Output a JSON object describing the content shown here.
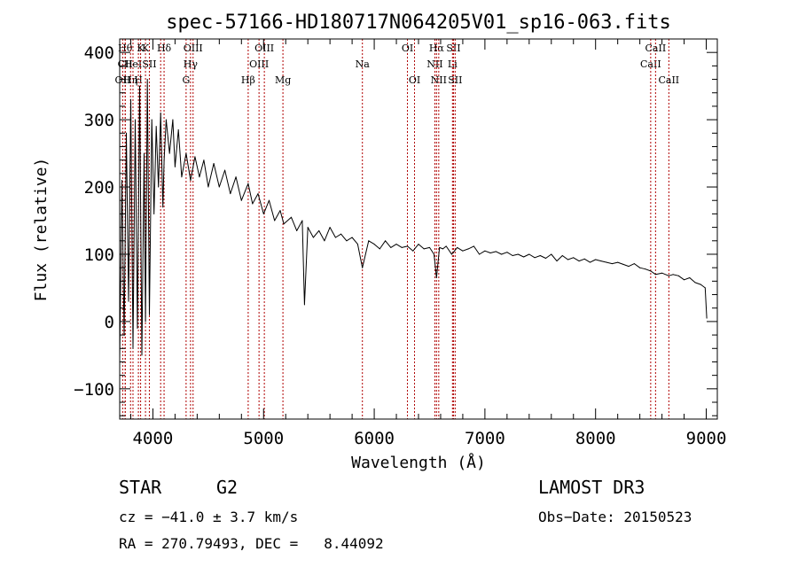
{
  "chart_data": {
    "type": "line",
    "title": "spec-57166-HD180717N064205V01_sp16-063.fits",
    "xlabel": "Wavelength (Å)",
    "ylabel": "Flux (relative)",
    "xlim": [
      3700,
      9100
    ],
    "ylim": [
      -145,
      420
    ],
    "xticks": [
      4000,
      5000,
      6000,
      7000,
      8000,
      9000
    ],
    "xtick_labels": [
      "4000",
      "5000",
      "6000",
      "7000",
      "8000",
      "9000"
    ],
    "yticks": [
      -100,
      0,
      100,
      200,
      300,
      400
    ],
    "ytick_labels": [
      "−100",
      "0",
      "100",
      "200",
      "300",
      "400"
    ],
    "series": [
      {
        "name": "spectrum",
        "x": [
          3700,
          3720,
          3740,
          3760,
          3780,
          3800,
          3820,
          3840,
          3860,
          3880,
          3900,
          3920,
          3933,
          3950,
          3968,
          3990,
          4010,
          4030,
          4050,
          4070,
          4090,
          4101,
          4120,
          4150,
          4180,
          4200,
          4230,
          4260,
          4300,
          4340,
          4380,
          4420,
          4460,
          4500,
          4550,
          4600,
          4650,
          4700,
          4750,
          4800,
          4861,
          4900,
          4950,
          5000,
          5050,
          5100,
          5150,
          5183,
          5250,
          5300,
          5350,
          5370,
          5400,
          5450,
          5500,
          5550,
          5600,
          5650,
          5700,
          5750,
          5800,
          5850,
          5893,
          5950,
          6000,
          6050,
          6100,
          6150,
          6200,
          6250,
          6300,
          6350,
          6400,
          6450,
          6500,
          6540,
          6563,
          6590,
          6620,
          6650,
          6700,
          6750,
          6800,
          6850,
          6900,
          6950,
          7000,
          7050,
          7100,
          7150,
          7200,
          7250,
          7300,
          7350,
          7400,
          7450,
          7500,
          7550,
          7600,
          7650,
          7700,
          7750,
          7800,
          7850,
          7900,
          7950,
          8000,
          8050,
          8100,
          8150,
          8200,
          8250,
          8300,
          8350,
          8400,
          8450,
          8500,
          8542,
          8600,
          8662,
          8700,
          8750,
          8800,
          8850,
          8900,
          8950,
          8990,
          9005
        ],
        "y": [
          -55,
          210,
          -20,
          280,
          30,
          330,
          -40,
          300,
          -10,
          350,
          -50,
          250,
          0,
          360,
          10,
          300,
          160,
          290,
          200,
          310,
          170,
          240,
          300,
          250,
          300,
          230,
          285,
          215,
          250,
          210,
          245,
          215,
          240,
          200,
          235,
          200,
          225,
          190,
          215,
          180,
          205,
          175,
          190,
          160,
          180,
          150,
          165,
          145,
          155,
          135,
          150,
          25,
          140,
          125,
          135,
          120,
          140,
          125,
          130,
          120,
          125,
          115,
          80,
          120,
          115,
          108,
          120,
          110,
          115,
          110,
          112,
          105,
          115,
          108,
          110,
          100,
          65,
          110,
          108,
          112,
          100,
          110,
          105,
          108,
          112,
          100,
          105,
          102,
          104,
          100,
          103,
          98,
          100,
          96,
          100,
          95,
          98,
          94,
          100,
          90,
          98,
          92,
          95,
          90,
          93,
          88,
          92,
          90,
          88,
          86,
          88,
          85,
          82,
          86,
          80,
          78,
          75,
          70,
          72,
          68,
          70,
          68,
          62,
          65,
          58,
          55,
          50,
          5
        ]
      }
    ],
    "line_markers": [
      {
        "wavelength": 3727,
        "label": "OII",
        "row": 3
      },
      {
        "wavelength": 3750,
        "label": "Hθ",
        "row": 1
      },
      {
        "wavelength": 3750,
        "label": "CII",
        "row": 2
      },
      {
        "wavelength": 3798,
        "label": "Hη",
        "row": 3
      },
      {
        "wavelength": 3820,
        "label": "HeI",
        "row": 2
      },
      {
        "wavelength": 3869,
        "label": "H",
        "row": 3
      },
      {
        "wavelength": 3889,
        "label": "K",
        "row": 1
      },
      {
        "wavelength": 3933,
        "label": "K",
        "row": 0
      },
      {
        "wavelength": 3968,
        "label": "SII",
        "row": 2
      },
      {
        "wavelength": 4101,
        "label": "Hδ",
        "row": 1
      },
      {
        "wavelength": 4070,
        "label": "",
        "row": 0
      },
      {
        "wavelength": 4300,
        "label": "G",
        "row": 3
      },
      {
        "wavelength": 4340,
        "label": "Hγ",
        "row": 2
      },
      {
        "wavelength": 4363,
        "label": "OIII",
        "row": 1
      },
      {
        "wavelength": 4861,
        "label": "Hβ",
        "row": 3
      },
      {
        "wavelength": 4959,
        "label": "OIII",
        "row": 2
      },
      {
        "wavelength": 5007,
        "label": "OIII",
        "row": 1
      },
      {
        "wavelength": 5175,
        "label": "Mg",
        "row": 3
      },
      {
        "wavelength": 5893,
        "label": "Na",
        "row": 2
      },
      {
        "wavelength": 6300,
        "label": "OI",
        "row": 1
      },
      {
        "wavelength": 6364,
        "label": "OI",
        "row": 3
      },
      {
        "wavelength": 6548,
        "label": "NII",
        "row": 2
      },
      {
        "wavelength": 6563,
        "label": "Hα",
        "row": 1
      },
      {
        "wavelength": 6583,
        "label": "NII",
        "row": 3
      },
      {
        "wavelength": 6707,
        "label": "Li",
        "row": 2
      },
      {
        "wavelength": 6716,
        "label": "SII",
        "row": 1
      },
      {
        "wavelength": 6731,
        "label": "SII",
        "row": 3
      },
      {
        "wavelength": 8498,
        "label": "CaII",
        "row": 2
      },
      {
        "wavelength": 8542,
        "label": "CaII",
        "row": 1
      },
      {
        "wavelength": 8662,
        "label": "CaII",
        "row": 3
      }
    ]
  },
  "info": {
    "object_class": "STAR",
    "subclass": "G2",
    "survey": "LAMOST DR3",
    "cz": "cz = −41.0 ± 3.7 km/s",
    "obs_date": "Obs−Date: 20150523",
    "radec": "RA = 270.79493, DEC =   8.44092"
  },
  "colors": {
    "spectrum": "#000000",
    "marker": "#b00000",
    "axes": "#000000"
  }
}
